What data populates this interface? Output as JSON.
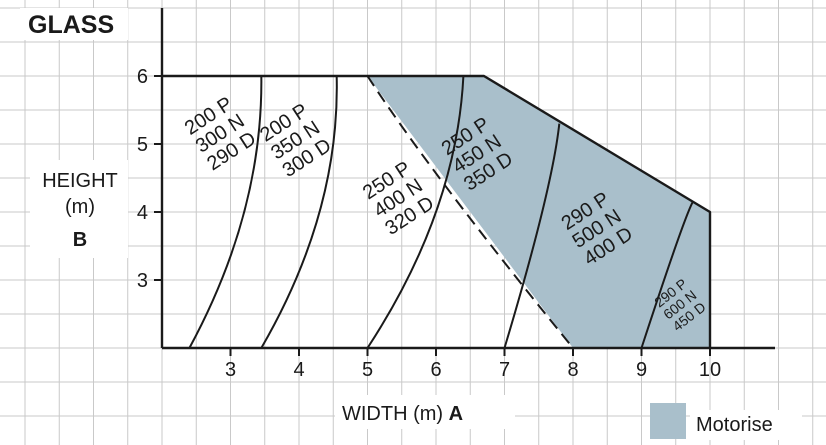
{
  "chart_data": {
    "type": "area",
    "title": "GLASS",
    "xlabel": "WIDTH (m)",
    "xlabel_letter": "A",
    "ylabel_line1": "HEIGHT",
    "ylabel_line2": "(m)",
    "ylabel_letter": "B",
    "x_ticks": [
      3,
      4,
      5,
      6,
      7,
      8,
      9,
      10
    ],
    "y_ticks": [
      3,
      4,
      5,
      6
    ],
    "xlim": [
      2,
      11
    ],
    "ylim": [
      2,
      7
    ],
    "grid": true,
    "envelope": [
      [
        2,
        2
      ],
      [
        2,
        6
      ],
      [
        6.7,
        6
      ],
      [
        10,
        4
      ],
      [
        10,
        2
      ]
    ],
    "motorised_region": [
      [
        5,
        6
      ],
      [
        6.7,
        6
      ],
      [
        10,
        4
      ],
      [
        10,
        2
      ],
      [
        8,
        2
      ]
    ],
    "motorised_color": "#a9bfcb",
    "boundaries": [
      {
        "style": "solid",
        "points": [
          [
            2.4,
            2
          ],
          [
            3.2,
            4
          ],
          [
            3.45,
            6
          ]
        ]
      },
      {
        "style": "solid",
        "points": [
          [
            3.45,
            2
          ],
          [
            4.3,
            4
          ],
          [
            4.55,
            6
          ]
        ]
      },
      {
        "style": "solid",
        "points": [
          [
            5,
            2
          ],
          [
            6,
            4
          ],
          [
            6.4,
            6
          ]
        ]
      },
      {
        "style": "solid",
        "points": [
          [
            7,
            2
          ],
          [
            7.55,
            4
          ],
          [
            7.8,
            5.3
          ]
        ]
      },
      {
        "style": "solid",
        "points": [
          [
            9,
            2
          ],
          [
            9.5,
            3.5
          ],
          [
            9.75,
            4.15
          ]
        ]
      },
      {
        "style": "dashed",
        "points": [
          [
            5,
            6
          ],
          [
            6.2,
            4.3
          ],
          [
            8,
            2
          ]
        ]
      }
    ],
    "zones": [
      {
        "lines": [
          "200 P",
          "300 N",
          "290 D"
        ],
        "x": 2.85,
        "y": 5.15,
        "rotate": -33,
        "small": false
      },
      {
        "lines": [
          "200 P",
          "350 N",
          "300 D"
        ],
        "x": 3.95,
        "y": 5.05,
        "rotate": -33,
        "small": false
      },
      {
        "lines": [
          "250 P",
          "400 N",
          "320 D"
        ],
        "x": 5.45,
        "y": 4.2,
        "rotate": -33,
        "small": false
      },
      {
        "lines": [
          "250 P",
          "450 N",
          "350 D"
        ],
        "x": 6.6,
        "y": 4.85,
        "rotate": -33,
        "small": false
      },
      {
        "lines": [
          "290 P",
          "500 N",
          "400 D"
        ],
        "x": 8.35,
        "y": 3.75,
        "rotate": -33,
        "small": false
      },
      {
        "lines": [
          "290 P",
          "600 N",
          "450 D"
        ],
        "x": 9.55,
        "y": 2.65,
        "rotate": -38,
        "small": true
      }
    ],
    "legend": {
      "label": "Motorise",
      "color": "#a9bfcb",
      "position": "bottom-right"
    }
  }
}
